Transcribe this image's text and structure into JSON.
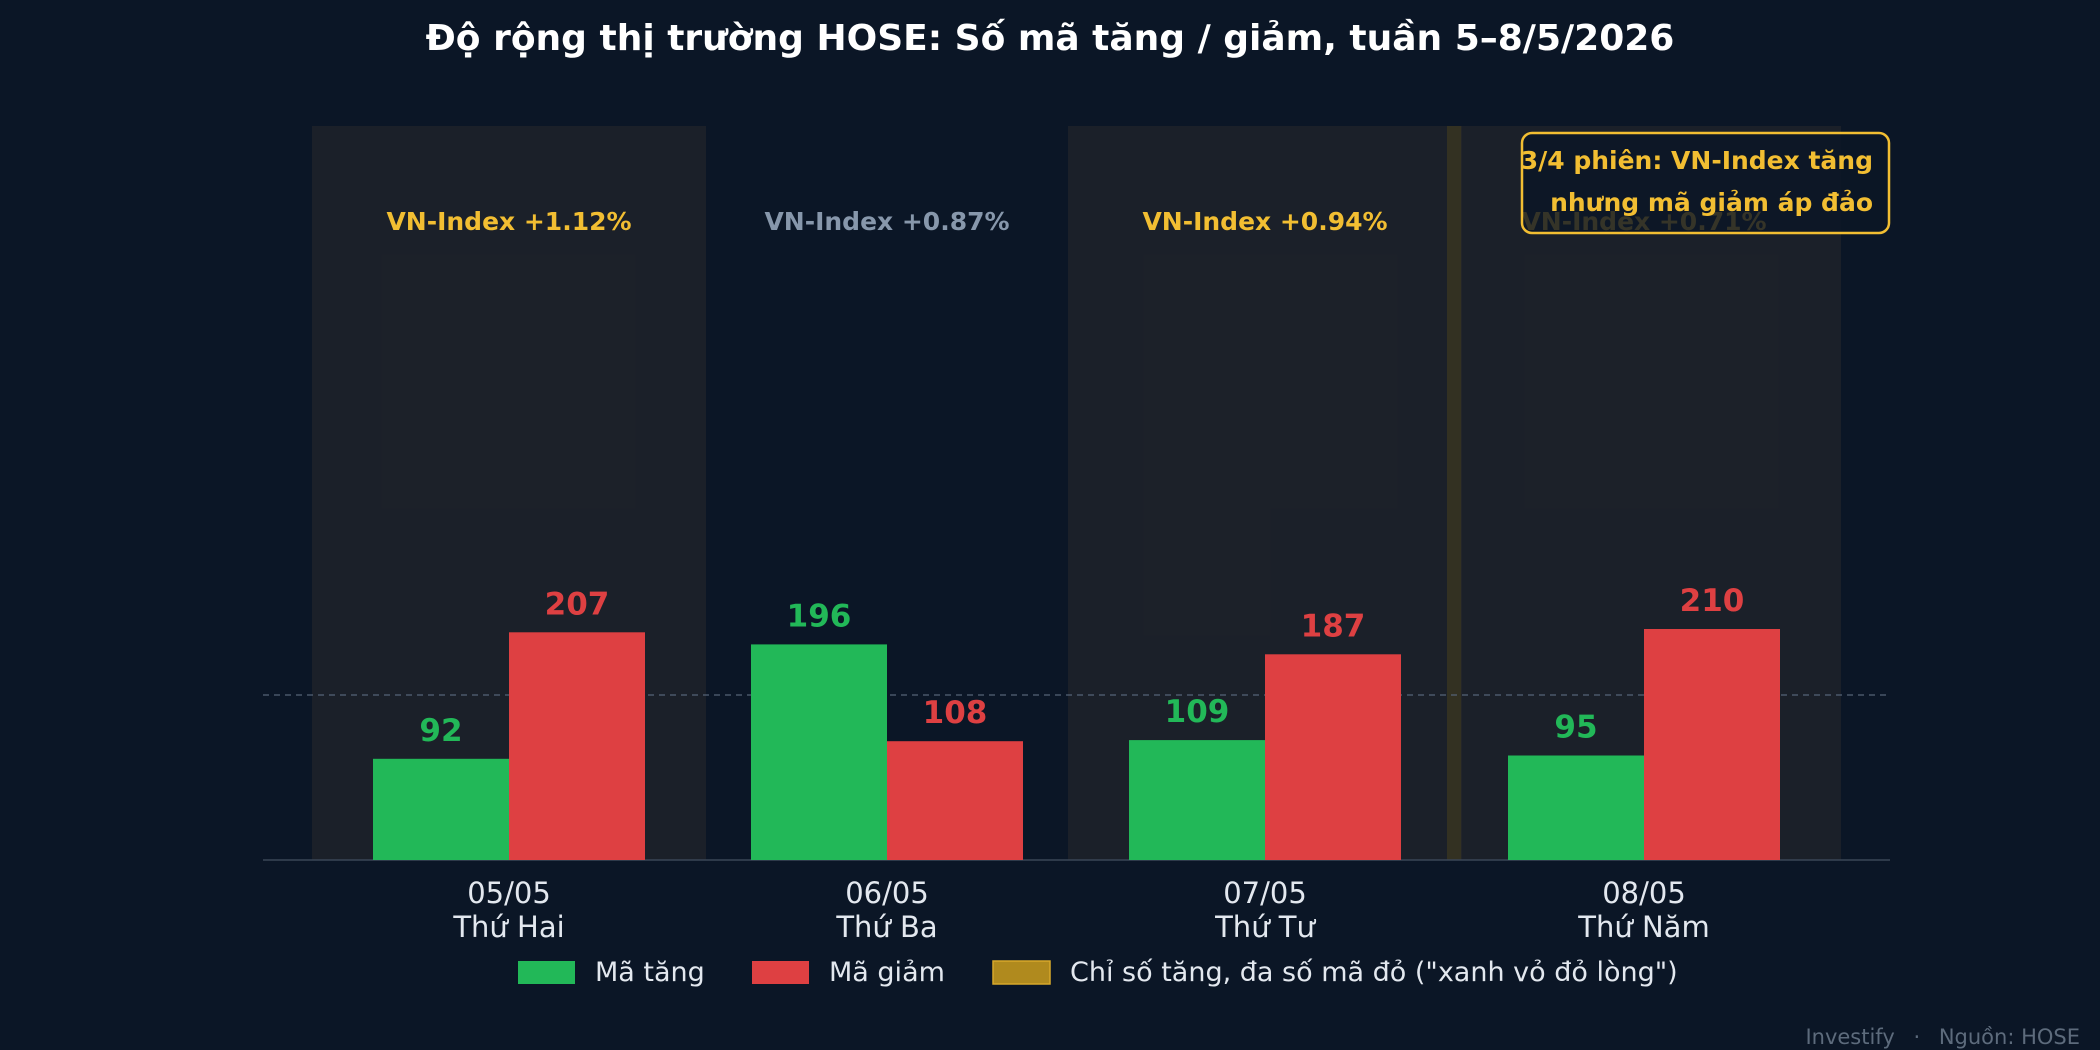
{
  "title": "Độ rộng thị trường HOSE: Số mã tăng / giảm, tuần 5–8/5/2026",
  "chart_data": {
    "type": "bar",
    "title": "Độ rộng thị trường HOSE: Số mã tăng / giảm, tuần 5–8/5/2026",
    "categories": [
      {
        "date": "05/05",
        "weekday": "Thứ Hai"
      },
      {
        "date": "06/05",
        "weekday": "Thứ Ba"
      },
      {
        "date": "07/05",
        "weekday": "Thứ Tư"
      },
      {
        "date": "08/05",
        "weekday": "Thứ Năm"
      }
    ],
    "series": [
      {
        "name": "Mã tăng",
        "color": "#22b858",
        "values": [
          92,
          196,
          109,
          95
        ]
      },
      {
        "name": "Mã giảm",
        "color": "#de4042",
        "values": [
          207,
          108,
          187,
          210
        ]
      }
    ],
    "index_labels": [
      {
        "text": "VN-Index +1.12%",
        "highlight": true
      },
      {
        "text": "VN-Index +0.87%",
        "highlight": false
      },
      {
        "text": "VN-Index +0.94%",
        "highlight": true
      },
      {
        "text": "VN-Index +0.71%",
        "highlight": true
      }
    ],
    "highlight_legend": "Chỉ số tăng, đa số mã đỏ (\"xanh vỏ đỏ lòng\")",
    "reference_line": 150,
    "ylim": [
      0,
      300
    ],
    "xlabel": "",
    "ylabel": "",
    "grid": false,
    "legend_position": "bottom"
  },
  "annotation": {
    "line1": "3/4 phiên: VN-Index tăng",
    "line2": "nhưng mã giảm áp đảo"
  },
  "footer": {
    "brand": "Investify",
    "separator": "·",
    "source": "Nguồn: HOSE"
  },
  "colors": {
    "background": "#0b1626",
    "up": "#22b858",
    "down": "#de4042",
    "accent": "#f2be32",
    "muted_label": "#8797ab",
    "text": "#e3e8ef",
    "highlight_fill": "#b08a1e"
  }
}
